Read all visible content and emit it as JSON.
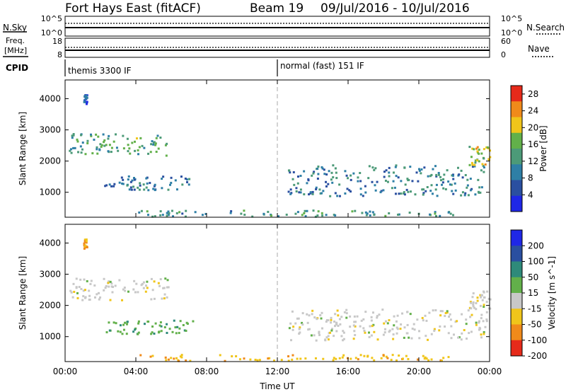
{
  "header": {
    "station": "Fort Hays East (fitACF)",
    "beam": "Beam 19",
    "dates": "09/Jul/2016 - 10/Jul/2016"
  },
  "strips": {
    "nsky_label": "N.Sky",
    "nsky_ticks": [
      "10^5",
      "10^0"
    ],
    "nsearch_label": "N.Search",
    "nsearch_ticks": [
      "10^5",
      "10^0"
    ],
    "freq_label_1": "Freq.",
    "freq_label_2": "[MHz]",
    "freq_ticks": [
      "18",
      "8"
    ],
    "nave_label": "Nave",
    "nave_ticks": [
      "60",
      "0"
    ],
    "cpid_label": "CPID",
    "cpid_modes": [
      {
        "name": "themis 3300 IF",
        "start_hour": 0
      },
      {
        "name": "normal (fast) 151 IF",
        "start_hour": 12
      }
    ]
  },
  "chart_data": [
    {
      "type": "heatmap",
      "quantity": "Power",
      "ylabel": "Slant Range [km]",
      "xlabel": "Time UT",
      "x_ticks": [
        "00:00",
        "04:00",
        "08:00",
        "12:00",
        "16:00",
        "20:00",
        "00:00"
      ],
      "xlim_hours": [
        0,
        24
      ],
      "y_ticks": [
        1000,
        2000,
        3000,
        4000
      ],
      "ylim_km": [
        200,
        4600
      ],
      "colorbar_label": "Power [dB]",
      "colorbar_ticks": [
        4,
        8,
        12,
        16,
        20,
        24,
        28
      ],
      "colorbar_range": [
        0,
        30
      ],
      "colorbar_colors": [
        "#1f27e6",
        "#2a4fa0",
        "#2e7fa6",
        "#4c9a78",
        "#62b04a",
        "#f0c51a",
        "#f08a1a",
        "#e62a1a"
      ],
      "echo_regions": [
        {
          "t0": 0.2,
          "t1": 5.8,
          "r0": 2200,
          "r1": 2900,
          "level": 14
        },
        {
          "t0": 2.2,
          "t1": 7.2,
          "r0": 1100,
          "r1": 1550,
          "level": 9
        },
        {
          "t0": 1.0,
          "t1": 1.2,
          "r0": 3850,
          "r1": 4150,
          "level": 6
        },
        {
          "t0": 12.5,
          "t1": 23.8,
          "r0": 900,
          "r1": 1900,
          "level": 10
        },
        {
          "t0": 22.8,
          "t1": 24.0,
          "r0": 1900,
          "r1": 2500,
          "level": 18
        },
        {
          "t0": 4.0,
          "t1": 22.0,
          "r0": 250,
          "r1": 450,
          "level": 12
        }
      ]
    },
    {
      "type": "heatmap",
      "quantity": "Velocity",
      "ylabel": "Slant Range [km]",
      "xlabel": "Time UT",
      "x_ticks": [
        "00:00",
        "04:00",
        "08:00",
        "12:00",
        "16:00",
        "20:00",
        "00:00"
      ],
      "xlim_hours": [
        0,
        24
      ],
      "y_ticks": [
        1000,
        2000,
        3000,
        4000
      ],
      "ylim_km": [
        200,
        4600
      ],
      "colorbar_label": "Velocity [m s^-1]",
      "colorbar_ticks": [
        200,
        100,
        50,
        15,
        -15,
        -50,
        -100,
        -200
      ],
      "colorbar_colors": [
        "#1f27e6",
        "#2a4fa0",
        "#2e8a7a",
        "#62b04a",
        "#c8c8c8",
        "#f0c51a",
        "#f08a1a",
        "#e62a1a"
      ],
      "echo_regions": [
        {
          "t0": 0.2,
          "t1": 5.8,
          "r0": 2200,
          "r1": 2900,
          "level": 0
        },
        {
          "t0": 2.2,
          "t1": 7.2,
          "r0": 1100,
          "r1": 1550,
          "level": 40
        },
        {
          "t0": 1.0,
          "t1": 1.2,
          "r0": 3850,
          "r1": 4150,
          "level": -60
        },
        {
          "t0": 12.5,
          "t1": 23.8,
          "r0": 900,
          "r1": 1900,
          "level": 0
        },
        {
          "t0": 22.8,
          "t1": 24.0,
          "r0": 1900,
          "r1": 2500,
          "level": 0
        },
        {
          "t0": 4.0,
          "t1": 22.0,
          "r0": 250,
          "r1": 450,
          "level": -40
        }
      ]
    }
  ]
}
